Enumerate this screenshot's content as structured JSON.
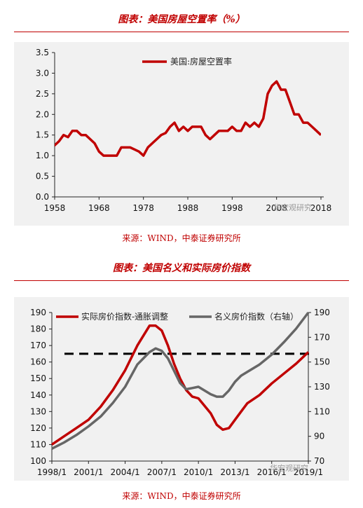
{
  "charts": [
    {
      "title": "图表：美国房屋空置率（%）",
      "source": "来源：WIND，中泰证券研究所",
      "watermark": "华宏观研究"
    },
    {
      "title": "图表：美国名义和实际房价指数",
      "source": "来源：WIND，中泰证券研究所",
      "watermark": "华宏观研究"
    }
  ],
  "chart_data": [
    {
      "type": "line",
      "title": "图表：美国房屋空置率（%）",
      "xlabel": "",
      "ylabel": "",
      "xlim": [
        1958,
        2018
      ],
      "ylim": [
        0.0,
        3.5
      ],
      "x_ticks": [
        "1958",
        "1968",
        "1978",
        "1988",
        "1998",
        "2008",
        "2018"
      ],
      "y_ticks": [
        "0.0",
        "0.5",
        "1.0",
        "1.5",
        "2.0",
        "2.5",
        "3.0",
        "3.5"
      ],
      "legend": "top-center",
      "grid": false,
      "colors": {
        "series": "#c00000",
        "background": "#f1f1f1"
      },
      "series": [
        {
          "name": "美国:房屋空置率",
          "x": [
            1956,
            1957,
            1958,
            1959,
            1960,
            1961,
            1962,
            1963,
            1964,
            1965,
            1966,
            1967,
            1968,
            1969,
            1970,
            1971,
            1972,
            1973,
            1974,
            1975,
            1976,
            1977,
            1978,
            1979,
            1980,
            1981,
            1982,
            1983,
            1984,
            1985,
            1986,
            1987,
            1988,
            1989,
            1990,
            1991,
            1992,
            1993,
            1994,
            1995,
            1996,
            1997,
            1998,
            1999,
            2000,
            2001,
            2002,
            2003,
            2004,
            2005,
            2006,
            2007,
            2008,
            2009,
            2010,
            2011,
            2012,
            2013,
            2014,
            2015,
            2016,
            2017,
            2018
          ],
          "y": [
            1.1,
            1.2,
            1.25,
            1.35,
            1.5,
            1.45,
            1.6,
            1.6,
            1.5,
            1.5,
            1.4,
            1.3,
            1.1,
            1.0,
            1.0,
            1.0,
            1.0,
            1.2,
            1.2,
            1.2,
            1.15,
            1.1,
            1.0,
            1.2,
            1.3,
            1.4,
            1.5,
            1.55,
            1.7,
            1.8,
            1.6,
            1.7,
            1.6,
            1.7,
            1.7,
            1.7,
            1.5,
            1.4,
            1.5,
            1.6,
            1.6,
            1.6,
            1.7,
            1.6,
            1.6,
            1.8,
            1.7,
            1.8,
            1.7,
            1.9,
            2.5,
            2.7,
            2.8,
            2.6,
            2.6,
            2.3,
            2.0,
            2.0,
            1.8,
            1.8,
            1.7,
            1.6,
            1.5
          ]
        }
      ]
    },
    {
      "type": "line",
      "title": "图表：美国名义和实际房价指数",
      "xlabel": "",
      "ylabel": "",
      "ylabel_right": "",
      "xlim": [
        1998,
        2019
      ],
      "ylim": [
        100,
        190
      ],
      "ylim_right": [
        70,
        190
      ],
      "x_ticks": [
        "1998/1",
        "2001/1",
        "2004/1",
        "2007/1",
        "2010/1",
        "2013/1",
        "2016/1",
        "2019/1"
      ],
      "y_ticks": [
        100,
        110,
        120,
        130,
        140,
        150,
        160,
        170,
        180,
        190
      ],
      "y_ticks_right": [
        70,
        90,
        110,
        130,
        150,
        170,
        190
      ],
      "reference_line": {
        "axis": "left",
        "value": 165,
        "style": "dashed"
      },
      "legend": "top",
      "grid": false,
      "colors": {
        "real": "#c00000",
        "nominal": "#666666",
        "reference": "#000000",
        "background": "#f1f1f1"
      },
      "series": [
        {
          "name": "实际房价指数-通胀调整",
          "axis": "left",
          "color": "#c00000",
          "x": [
            1998,
            1999,
            2000,
            2001,
            2002,
            2003,
            2004,
            2005,
            2006,
            2006.5,
            2007,
            2007.5,
            2008,
            2008.5,
            2009,
            2009.5,
            2010,
            2011,
            2011.5,
            2012,
            2012.5,
            2013,
            2013.5,
            2014,
            2015,
            2016,
            2017,
            2018,
            2019
          ],
          "y": [
            110,
            115,
            120,
            125,
            133,
            143,
            155,
            170,
            182,
            182,
            179,
            170,
            159,
            150,
            143,
            139,
            138,
            129,
            122,
            119,
            120,
            125,
            130,
            135,
            140,
            147,
            153,
            159,
            166
          ]
        },
        {
          "name": "名义房价指数（右轴）",
          "axis": "right",
          "color": "#666666",
          "x": [
            1998,
            1999,
            2000,
            2001,
            2002,
            2003,
            2004,
            2005,
            2006,
            2006.5,
            2007,
            2007.5,
            2008,
            2008.5,
            2009,
            2009.5,
            2010,
            2011,
            2011.5,
            2012,
            2012.5,
            2013,
            2013.5,
            2014,
            2015,
            2016,
            2017,
            2018,
            2019
          ],
          "y": [
            80,
            85,
            91,
            98,
            106,
            117,
            130,
            148,
            158,
            161,
            159,
            153,
            143,
            133,
            128,
            129,
            130,
            124,
            122,
            122,
            127,
            134,
            139,
            142,
            148,
            156,
            166,
            177,
            190
          ]
        }
      ]
    }
  ]
}
